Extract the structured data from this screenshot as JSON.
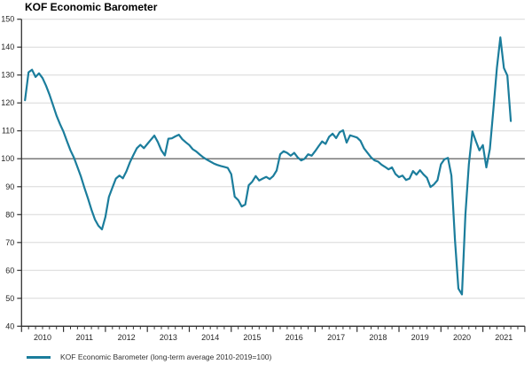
{
  "header": {
    "title": "KOF Economic Barometer"
  },
  "chart_data": {
    "type": "line",
    "title": "KOF Economic Barometer",
    "x_start": "2010-01",
    "x_end": "2021-08",
    "frequency": "monthly",
    "x_ticks_years": [
      "2010",
      "2011",
      "2012",
      "2013",
      "2014",
      "2015",
      "2016",
      "2017",
      "2018",
      "2019",
      "2020",
      "2021"
    ],
    "y_ticks": [
      40,
      50,
      60,
      70,
      80,
      90,
      100,
      110,
      120,
      130,
      140,
      150
    ],
    "ylim": [
      40,
      150
    ],
    "reference_line": 100,
    "grid": "horizontal",
    "legend_position": "bottom-left",
    "colors": {
      "line": "#1b7d9c",
      "grid": "#d8d8d8",
      "reference": "#4d4d4d",
      "axis": "#333333",
      "text": "#262626"
    },
    "series": [
      {
        "name": "KOF Economic Barometer (long-term average 2010-2019=100)",
        "color": "#1b7d9c",
        "values": [
          121.0,
          131.0,
          131.9,
          129.3,
          130.6,
          128.9,
          126.2,
          123.0,
          119.2,
          115.5,
          112.4,
          109.7,
          106.3,
          103.0,
          100.4,
          97.0,
          93.6,
          89.5,
          85.8,
          81.8,
          78.2,
          76.0,
          74.7,
          79.2,
          86.3,
          89.7,
          92.9,
          94.0,
          93.0,
          95.5,
          98.7,
          101.3,
          103.8,
          105.0,
          103.8,
          105.3,
          106.8,
          108.3,
          106.0,
          103.0,
          101.2,
          107.2,
          107.3,
          108.0,
          108.6,
          107.0,
          105.9,
          104.9,
          103.4,
          102.6,
          101.5,
          100.5,
          99.7,
          99.0,
          98.3,
          97.8,
          97.4,
          97.1,
          96.7,
          94.5,
          86.4,
          85.2,
          82.9,
          83.6,
          90.5,
          91.8,
          93.8,
          92.2,
          92.9,
          93.5,
          92.7,
          93.8,
          95.8,
          101.6,
          102.7,
          102.1,
          101.1,
          102.1,
          100.5,
          99.4,
          100.0,
          101.6,
          101.1,
          102.7,
          104.5,
          106.2,
          105.3,
          107.9,
          109.0,
          107.4,
          109.5,
          110.2,
          105.8,
          108.4,
          108.0,
          107.6,
          106.4,
          103.7,
          102.1,
          100.5,
          99.4,
          99.0,
          97.9,
          97.1,
          96.2,
          96.9,
          94.5,
          93.4,
          94.0,
          92.4,
          92.9,
          95.6,
          94.3,
          95.9,
          94.4,
          93.2,
          89.9,
          90.8,
          92.3,
          98.0,
          99.8,
          100.3,
          94.0,
          71.0,
          53.5,
          51.4,
          80.0,
          98.0,
          109.8,
          106.3,
          103.0,
          104.9,
          96.9,
          103.5,
          117.5,
          132.5,
          143.5,
          132.5,
          129.8,
          113.5
        ]
      }
    ]
  }
}
